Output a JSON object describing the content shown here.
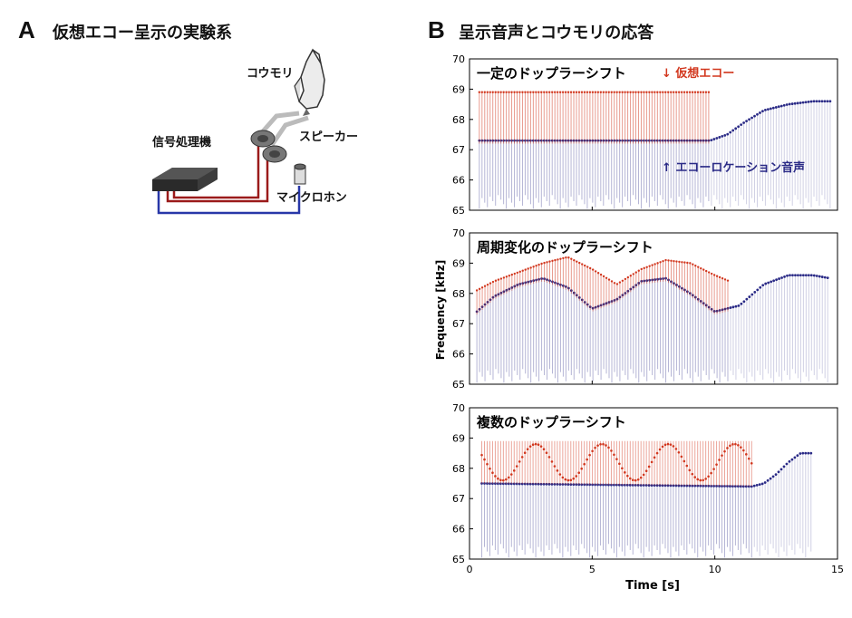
{
  "panel_a": {
    "letter": "A",
    "title": "仮想エコー呈示の実験系",
    "labels": {
      "bat": "コウモリ",
      "speaker": "スピーカー",
      "processor": "信号処理機",
      "microphone": "マイクロホン"
    }
  },
  "panel_b": {
    "letter": "B",
    "title": "呈示音声とコウモリの応答",
    "ylabel": "Frequency [kHz]",
    "xlabel": "Time [s]"
  },
  "colors": {
    "echo_red": "#d2381f",
    "call_blue": "#2a2a86",
    "wire_red": "#9b1b1b",
    "wire_blue": "#2837a8"
  },
  "chart_data": [
    {
      "type": "heatmap",
      "title": "一定のドップラーシフト",
      "annotations": [
        "↓ 仮想エコー",
        "↑ エコーロケーション音声"
      ],
      "xlim": [
        0,
        15
      ],
      "ylim": [
        65,
        70
      ],
      "yticks": [
        "65",
        "66",
        "67",
        "68",
        "69",
        "70"
      ],
      "series": [
        {
          "name": "仮想エコー",
          "x": [
            0.4,
            9.8
          ],
          "y": [
            68.9,
            68.9
          ]
        },
        {
          "name": "エコーロケーション音声",
          "x": [
            0.4,
            9.8,
            10.5,
            11.2,
            12.0,
            13.0,
            14.0,
            14.7
          ],
          "y": [
            67.3,
            67.3,
            67.5,
            67.9,
            68.3,
            68.5,
            68.6,
            68.6
          ]
        }
      ]
    },
    {
      "type": "heatmap",
      "title": "周期変化のドップラーシフト",
      "xlim": [
        0,
        15
      ],
      "ylim": [
        65,
        70
      ],
      "yticks": [
        "65",
        "66",
        "67",
        "68",
        "69",
        "70"
      ],
      "series": [
        {
          "name": "エコー",
          "x": [
            0.3,
            1.0,
            2.0,
            3.0,
            4.0,
            5.0,
            6.0,
            7.0,
            8.0,
            9.0,
            10.0,
            10.6
          ],
          "y": [
            68.1,
            68.4,
            68.7,
            69.0,
            69.2,
            68.8,
            68.3,
            68.8,
            69.1,
            69.0,
            68.6,
            68.4
          ]
        },
        {
          "name": "コウモリの応答",
          "x": [
            0.3,
            1.0,
            2.0,
            3.0,
            4.0,
            5.0,
            6.0,
            7.0,
            8.0,
            9.0,
            10.0,
            11.0,
            12.0,
            13.0,
            14.0,
            14.7
          ],
          "y": [
            67.4,
            67.9,
            68.3,
            68.5,
            68.2,
            67.5,
            67.8,
            68.4,
            68.5,
            68.0,
            67.4,
            67.6,
            68.3,
            68.6,
            68.6,
            68.5
          ]
        }
      ]
    },
    {
      "type": "heatmap",
      "title": "複数のドップラーシフト",
      "xlim": [
        0,
        15
      ],
      "ylim": [
        65,
        70
      ],
      "yticks": [
        "65",
        "66",
        "67",
        "68",
        "69",
        "70"
      ],
      "series": [
        {
          "name": "エコー",
          "x": [
            0.5,
            11.5
          ],
          "y": [
            67.6,
            68.9
          ]
        },
        {
          "name": "コウモリの応答",
          "x": [
            0.5,
            11.5,
            12.0,
            12.5,
            13.0,
            13.5,
            14.0
          ],
          "y": [
            67.5,
            67.4,
            67.5,
            67.8,
            68.2,
            68.5,
            68.5
          ]
        }
      ],
      "xticks": [
        "0",
        "5",
        "10",
        "15"
      ]
    }
  ]
}
